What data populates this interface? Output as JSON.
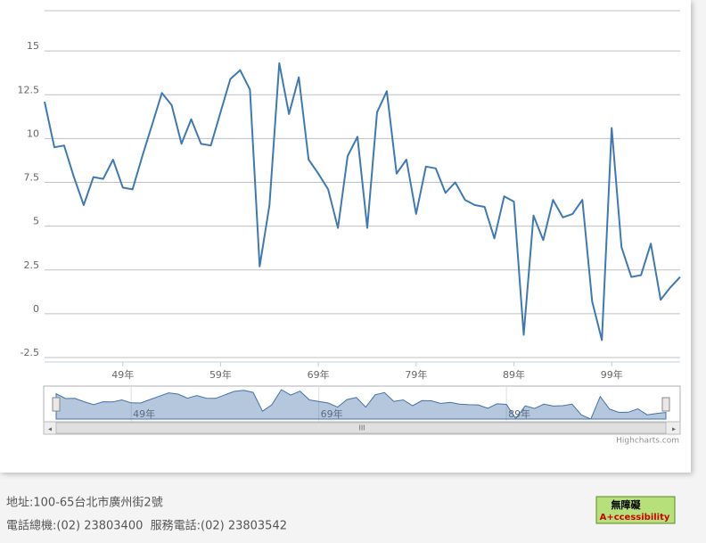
{
  "chart_data": {
    "type": "line",
    "x": [
      41,
      42,
      43,
      44,
      45,
      46,
      47,
      48,
      49,
      50,
      51,
      52,
      53,
      54,
      55,
      56,
      57,
      58,
      59,
      60,
      61,
      62,
      63,
      64,
      65,
      66,
      67,
      68,
      69,
      70,
      71,
      72,
      73,
      74,
      75,
      76,
      77,
      78,
      79,
      80,
      81,
      82,
      83,
      84,
      85,
      86,
      87,
      88,
      89,
      90,
      91,
      92,
      93,
      94,
      95,
      96,
      97,
      98,
      99,
      100,
      101,
      102,
      103,
      104,
      105,
      106
    ],
    "series": [
      {
        "color": "#3f79b4",
        "values": [
          12.1,
          9.5,
          9.6,
          7.8,
          6.2,
          7.8,
          7.7,
          8.8,
          7.2,
          7.1,
          9.0,
          10.8,
          12.6,
          11.9,
          9.7,
          11.1,
          9.7,
          9.6,
          11.5,
          13.4,
          13.9,
          12.8,
          2.7,
          6.2,
          14.3,
          11.4,
          13.5,
          8.8,
          8.0,
          7.1,
          4.9,
          9.0,
          10.1,
          4.9,
          11.5,
          12.7,
          8.0,
          8.8,
          5.7,
          8.4,
          8.3,
          6.9,
          7.5,
          6.5,
          6.2,
          6.1,
          4.3,
          6.7,
          6.4,
          -1.2,
          5.6,
          4.2,
          6.5,
          5.5,
          5.7,
          6.5,
          0.7,
          -1.5,
          10.6,
          3.8,
          2.1,
          2.2,
          4.0,
          0.8,
          1.5,
          2.1
        ]
      }
    ],
    "xlim": [
      41,
      106
    ],
    "ylim": [
      -2.5,
      17.5
    ],
    "yticks": [
      -2.5,
      0,
      2.5,
      5,
      7.5,
      10,
      12.5,
      15
    ],
    "xticks": [
      {
        "value": 49,
        "label": "49年"
      },
      {
        "value": 59,
        "label": "59年"
      },
      {
        "value": 69,
        "label": "69年"
      },
      {
        "value": 79,
        "label": "79年"
      },
      {
        "value": 89,
        "label": "89年"
      },
      {
        "value": 99,
        "label": "99年"
      }
    ],
    "navigator_xticks": [
      {
        "value": 49,
        "label": "49年"
      },
      {
        "value": 69,
        "label": "69年"
      },
      {
        "value": 89,
        "label": "89年"
      }
    ],
    "grid": true,
    "credits": "Highcharts.com"
  },
  "footer": {
    "address": "地址:100-65台北市廣州街2號",
    "phones": "電話總機:(02) 23803400  服務電話:(02) 23803542",
    "badge_title": "無障礙",
    "badge_text": "A+ccessibility"
  }
}
